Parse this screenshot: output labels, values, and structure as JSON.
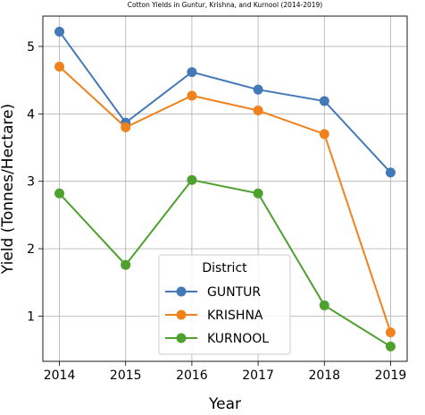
{
  "chart_data": {
    "type": "line",
    "title": "Cotton Yields in Guntur, Krishna, and Kurnool (2014-2019)",
    "xlabel": "Year",
    "ylabel": "Yield (Tonnes/Hectare)",
    "x": [
      "2014",
      "2015",
      "2016",
      "2017",
      "2018",
      "2019"
    ],
    "yticks": [
      "1",
      "2",
      "3",
      "4",
      "5"
    ],
    "xlim": [
      2013.75,
      2019.25
    ],
    "ylim": [
      0.33,
      5.45
    ],
    "grid": true,
    "legend": {
      "title": "District",
      "placement": "lower center"
    },
    "series": [
      {
        "name": "GUNTUR",
        "color": "#4479b8",
        "values": [
          5.22,
          3.87,
          4.62,
          4.36,
          4.19,
          3.13
        ]
      },
      {
        "name": "KRISHNA",
        "color": "#f0821d",
        "values": [
          4.7,
          3.8,
          4.27,
          4.05,
          3.7,
          0.76
        ]
      },
      {
        "name": "KURNOOL",
        "color": "#4ea12f",
        "values": [
          2.82,
          1.76,
          3.02,
          2.82,
          1.16,
          0.55
        ]
      }
    ]
  }
}
